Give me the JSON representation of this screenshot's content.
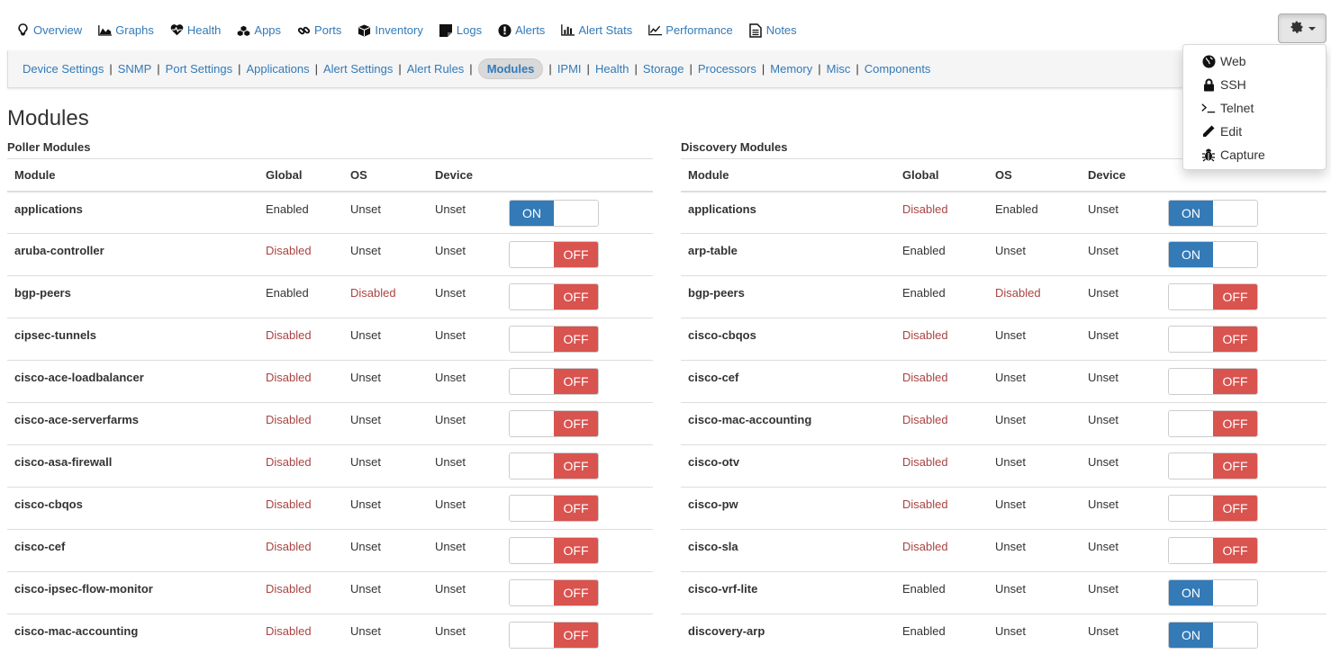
{
  "topnav": [
    {
      "label": "Overview",
      "icon": "lightbulb-icon"
    },
    {
      "label": "Graphs",
      "icon": "area-chart-icon"
    },
    {
      "label": "Health",
      "icon": "heartbeat-icon"
    },
    {
      "label": "Apps",
      "icon": "cubes-icon"
    },
    {
      "label": "Ports",
      "icon": "link-icon"
    },
    {
      "label": "Inventory",
      "icon": "cube-icon"
    },
    {
      "label": "Logs",
      "icon": "sticky-note-icon"
    },
    {
      "label": "Alerts",
      "icon": "exclamation-circle-icon"
    },
    {
      "label": "Alert Stats",
      "icon": "bar-chart-icon"
    },
    {
      "label": "Performance",
      "icon": "line-chart-icon"
    },
    {
      "label": "Notes",
      "icon": "file-text-icon"
    }
  ],
  "settings_menu": {
    "icon": "gear-icon",
    "items": [
      {
        "label": "Web",
        "icon": "globe-icon"
      },
      {
        "label": "SSH",
        "icon": "lock-icon"
      },
      {
        "label": "Telnet",
        "icon": "terminal-icon"
      },
      {
        "label": "Edit",
        "icon": "pencil-icon"
      },
      {
        "label": "Capture",
        "icon": "bug-icon"
      }
    ]
  },
  "subnav": {
    "items": [
      "Device Settings",
      "SNMP",
      "Port Settings",
      "Applications",
      "Alert Settings",
      "Alert Rules",
      "Modules",
      "IPMI",
      "Health",
      "Storage",
      "Processors",
      "Memory",
      "Misc",
      "Components"
    ],
    "active": "Modules",
    "separator": "|"
  },
  "page_title": "Modules",
  "columns": [
    "Module",
    "Global",
    "OS",
    "Device"
  ],
  "toggle_labels": {
    "on": "ON",
    "off": "OFF"
  },
  "colors": {
    "link": "#337ab7",
    "disabled": "#a94442",
    "on": "#337ab7",
    "off": "#d9534f"
  },
  "poller": {
    "title": "Poller Modules",
    "rows": [
      {
        "module": "applications",
        "global": "Enabled",
        "os": "Unset",
        "device": "Unset",
        "state": "on"
      },
      {
        "module": "aruba-controller",
        "global": "Disabled",
        "os": "Unset",
        "device": "Unset",
        "state": "off"
      },
      {
        "module": "bgp-peers",
        "global": "Enabled",
        "os": "Disabled",
        "device": "Unset",
        "state": "off"
      },
      {
        "module": "cipsec-tunnels",
        "global": "Disabled",
        "os": "Unset",
        "device": "Unset",
        "state": "off"
      },
      {
        "module": "cisco-ace-loadbalancer",
        "global": "Disabled",
        "os": "Unset",
        "device": "Unset",
        "state": "off"
      },
      {
        "module": "cisco-ace-serverfarms",
        "global": "Disabled",
        "os": "Unset",
        "device": "Unset",
        "state": "off"
      },
      {
        "module": "cisco-asa-firewall",
        "global": "Disabled",
        "os": "Unset",
        "device": "Unset",
        "state": "off"
      },
      {
        "module": "cisco-cbqos",
        "global": "Disabled",
        "os": "Unset",
        "device": "Unset",
        "state": "off"
      },
      {
        "module": "cisco-cef",
        "global": "Disabled",
        "os": "Unset",
        "device": "Unset",
        "state": "off"
      },
      {
        "module": "cisco-ipsec-flow-monitor",
        "global": "Disabled",
        "os": "Unset",
        "device": "Unset",
        "state": "off"
      },
      {
        "module": "cisco-mac-accounting",
        "global": "Disabled",
        "os": "Unset",
        "device": "Unset",
        "state": "off"
      }
    ]
  },
  "discovery": {
    "title": "Discovery Modules",
    "rows": [
      {
        "module": "applications",
        "global": "Disabled",
        "os": "Enabled",
        "device": "Unset",
        "state": "on"
      },
      {
        "module": "arp-table",
        "global": "Enabled",
        "os": "Unset",
        "device": "Unset",
        "state": "on"
      },
      {
        "module": "bgp-peers",
        "global": "Enabled",
        "os": "Disabled",
        "device": "Unset",
        "state": "off"
      },
      {
        "module": "cisco-cbqos",
        "global": "Disabled",
        "os": "Unset",
        "device": "Unset",
        "state": "off"
      },
      {
        "module": "cisco-cef",
        "global": "Disabled",
        "os": "Unset",
        "device": "Unset",
        "state": "off"
      },
      {
        "module": "cisco-mac-accounting",
        "global": "Disabled",
        "os": "Unset",
        "device": "Unset",
        "state": "off"
      },
      {
        "module": "cisco-otv",
        "global": "Disabled",
        "os": "Unset",
        "device": "Unset",
        "state": "off"
      },
      {
        "module": "cisco-pw",
        "global": "Disabled",
        "os": "Unset",
        "device": "Unset",
        "state": "off"
      },
      {
        "module": "cisco-sla",
        "global": "Disabled",
        "os": "Unset",
        "device": "Unset",
        "state": "off"
      },
      {
        "module": "cisco-vrf-lite",
        "global": "Enabled",
        "os": "Unset",
        "device": "Unset",
        "state": "on"
      },
      {
        "module": "discovery-arp",
        "global": "Enabled",
        "os": "Unset",
        "device": "Unset",
        "state": "on"
      }
    ]
  }
}
